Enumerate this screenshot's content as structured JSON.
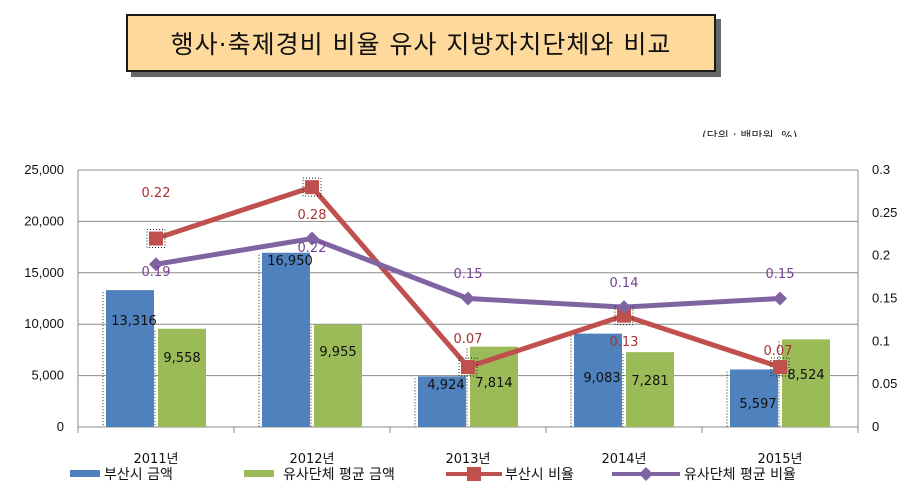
{
  "title": "행사·축제경비 비율 유사 지방자치단체와 비교",
  "unit": "(단위 : 백만원, %)",
  "colors": {
    "bar1": "#4f81bd",
    "bar2": "#9bbb59",
    "line1": "#c0504d",
    "line2": "#8064a2"
  },
  "chart_data": {
    "type": "bar",
    "categories": [
      "2011년",
      "2012년",
      "2013년",
      "2014년",
      "2015년"
    ],
    "series": [
      {
        "name": "부산시 금액",
        "type": "bar",
        "axis": "left",
        "values": [
          13316,
          16950,
          4924,
          9083,
          5597
        ],
        "labels": [
          "13,316",
          "16,950",
          "4,924",
          "9,083",
          "5,597"
        ]
      },
      {
        "name": "유사단체 평균 금액",
        "type": "bar",
        "axis": "left",
        "values": [
          9558,
          9955,
          7814,
          7281,
          8524
        ],
        "labels": [
          "9,558",
          "9,955",
          "7,814",
          "7,281",
          "8,524"
        ]
      },
      {
        "name": "부산시 비율",
        "type": "line",
        "axis": "right",
        "values": [
          0.22,
          0.28,
          0.07,
          0.13,
          0.07
        ],
        "labels": [
          "0.22",
          "0.28",
          "0.07",
          "0.13",
          "0.07"
        ]
      },
      {
        "name": "유사단체 평균 비율",
        "type": "line",
        "axis": "right",
        "values": [
          0.19,
          0.22,
          0.15,
          0.14,
          0.15
        ],
        "labels": [
          "0.19",
          "0.22",
          "0.15",
          "0.14",
          "0.15"
        ]
      }
    ],
    "y_left": {
      "min": 0,
      "max": 25000,
      "ticks": [
        "0",
        "5,000",
        "10,000",
        "15,000",
        "20,000",
        "25,000"
      ]
    },
    "y_right": {
      "min": 0,
      "max": 0.3,
      "ticks": [
        "0",
        "0.05",
        "0.1",
        "0.15",
        "0.2",
        "0.25",
        "0.3"
      ]
    },
    "legend": [
      "부산시 금액",
      "유사단체 평균 금액",
      "부산시 비율",
      "유사단체 평균 비율"
    ],
    "legend_position": "bottom",
    "grid": true
  }
}
